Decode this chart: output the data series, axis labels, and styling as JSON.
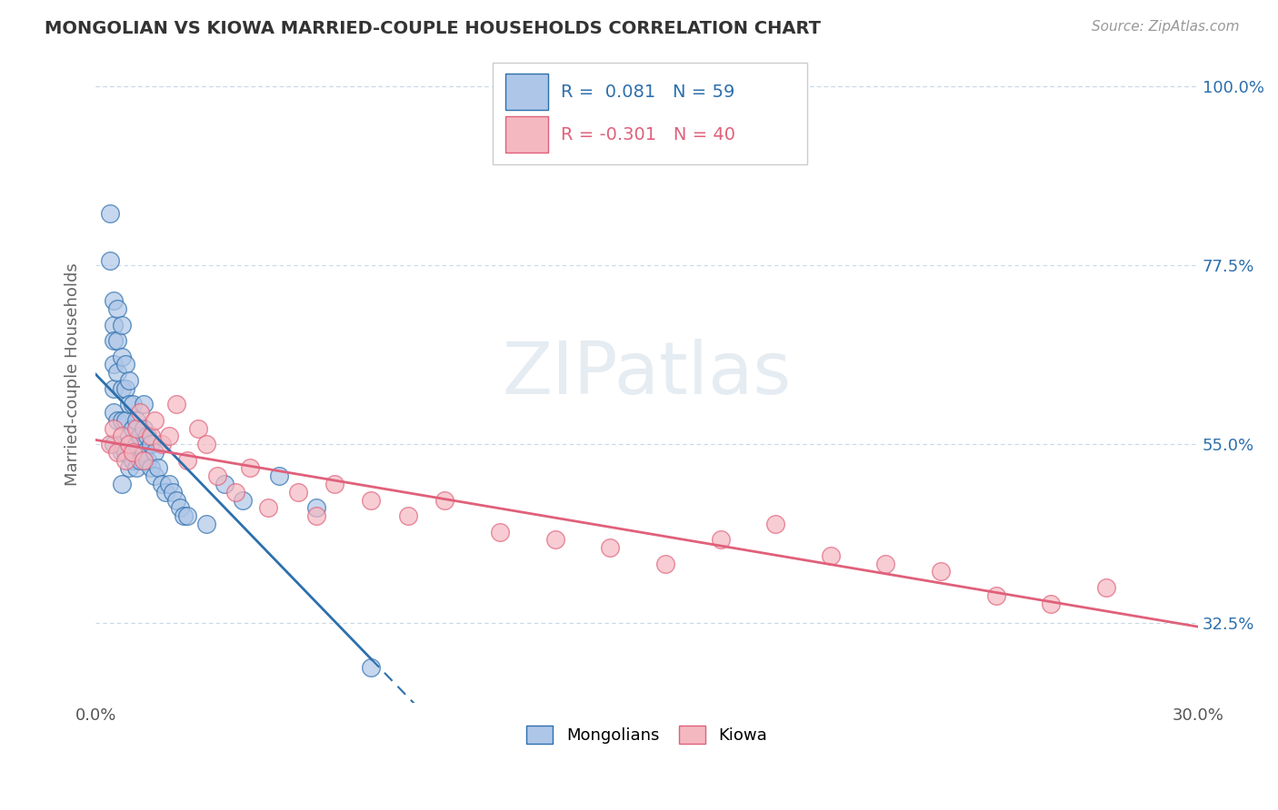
{
  "title": "MONGOLIAN VS KIOWA MARRIED-COUPLE HOUSEHOLDS CORRELATION CHART",
  "source": "Source: ZipAtlas.com",
  "ylabel": "Married-couple Households",
  "xmin": 0.0,
  "xmax": 0.3,
  "ymin": 0.225,
  "ymax": 1.05,
  "yticks": [
    0.325,
    0.55,
    0.775,
    1.0
  ],
  "ytick_labels": [
    "32.5%",
    "55.0%",
    "77.5%",
    "100.0%"
  ],
  "xtick_labels": [
    "0.0%",
    "30.0%"
  ],
  "mongolian_color": "#aec6e8",
  "kiowa_color": "#f4b8c1",
  "mongolian_line_color": "#2c6fad",
  "kiowa_line_color": "#e0607a",
  "background_color": "#ffffff",
  "grid_color": "#c8d8e8",
  "mongolian_x": [
    0.004,
    0.004,
    0.005,
    0.005,
    0.005,
    0.005,
    0.005,
    0.005,
    0.005,
    0.006,
    0.006,
    0.006,
    0.006,
    0.007,
    0.007,
    0.007,
    0.007,
    0.007,
    0.007,
    0.008,
    0.008,
    0.008,
    0.008,
    0.009,
    0.009,
    0.009,
    0.009,
    0.01,
    0.01,
    0.01,
    0.011,
    0.011,
    0.011,
    0.012,
    0.012,
    0.013,
    0.013,
    0.013,
    0.014,
    0.014,
    0.015,
    0.015,
    0.016,
    0.016,
    0.017,
    0.018,
    0.019,
    0.02,
    0.021,
    0.022,
    0.023,
    0.024,
    0.025,
    0.03,
    0.035,
    0.04,
    0.05,
    0.06,
    0.075
  ],
  "mongolian_y": [
    0.84,
    0.78,
    0.73,
    0.7,
    0.68,
    0.65,
    0.62,
    0.59,
    0.55,
    0.72,
    0.68,
    0.64,
    0.58,
    0.7,
    0.66,
    0.62,
    0.58,
    0.54,
    0.5,
    0.65,
    0.62,
    0.58,
    0.54,
    0.63,
    0.6,
    0.56,
    0.52,
    0.6,
    0.57,
    0.53,
    0.58,
    0.55,
    0.52,
    0.56,
    0.53,
    0.6,
    0.57,
    0.54,
    0.56,
    0.53,
    0.55,
    0.52,
    0.54,
    0.51,
    0.52,
    0.5,
    0.49,
    0.5,
    0.49,
    0.48,
    0.47,
    0.46,
    0.46,
    0.45,
    0.5,
    0.48,
    0.51,
    0.47,
    0.27
  ],
  "kiowa_x": [
    0.004,
    0.005,
    0.006,
    0.007,
    0.008,
    0.009,
    0.01,
    0.011,
    0.012,
    0.013,
    0.015,
    0.016,
    0.018,
    0.02,
    0.022,
    0.025,
    0.028,
    0.03,
    0.033,
    0.038,
    0.042,
    0.047,
    0.055,
    0.06,
    0.065,
    0.075,
    0.085,
    0.095,
    0.11,
    0.125,
    0.14,
    0.155,
    0.17,
    0.185,
    0.2,
    0.215,
    0.23,
    0.245,
    0.26,
    0.275
  ],
  "kiowa_y": [
    0.55,
    0.57,
    0.54,
    0.56,
    0.53,
    0.55,
    0.54,
    0.57,
    0.59,
    0.53,
    0.56,
    0.58,
    0.55,
    0.56,
    0.6,
    0.53,
    0.57,
    0.55,
    0.51,
    0.49,
    0.52,
    0.47,
    0.49,
    0.46,
    0.5,
    0.48,
    0.46,
    0.48,
    0.44,
    0.43,
    0.42,
    0.4,
    0.43,
    0.45,
    0.41,
    0.4,
    0.39,
    0.36,
    0.35,
    0.37
  ],
  "watermark_text": "ZIPatlas",
  "bottom_legend": [
    "Mongolians",
    "Kiowa"
  ]
}
